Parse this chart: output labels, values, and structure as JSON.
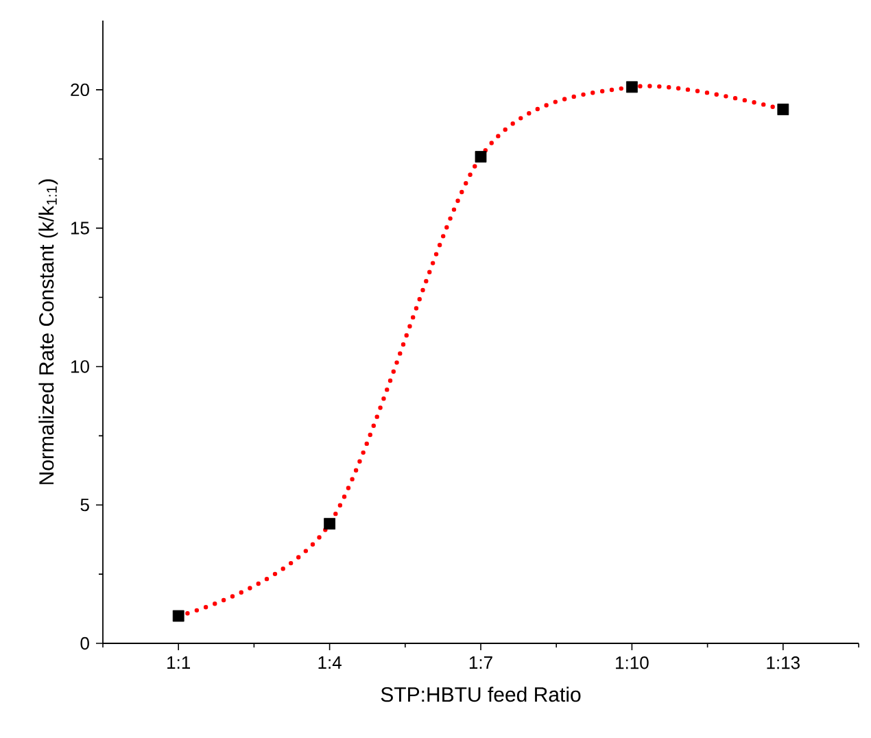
{
  "chart_data": {
    "type": "line",
    "xlabel": "STP:HBTU feed Ratio",
    "ylabel": "Normalized Rate Constant (k/k$_{1:1}$)",
    "categories": [
      "1:1",
      "1:4",
      "1:7",
      "1:10",
      "1:13"
    ],
    "series": [
      {
        "color": "#ff0000",
        "values": [
          0.99,
          4.32,
          17.58,
          20.1,
          19.29
        ]
      }
    ],
    "ylim": [
      0,
      22.5
    ],
    "yticks": [
      0,
      5,
      10,
      15,
      20,
      {
        "value": 2.5,
        "label": null
      },
      {
        "value": 7.5,
        "label": null
      },
      {
        "value": 12.5,
        "label": null
      },
      {
        "value": 17.5,
        "label": null
      }
    ],
    "marker": "square",
    "line_style": "dotted"
  }
}
